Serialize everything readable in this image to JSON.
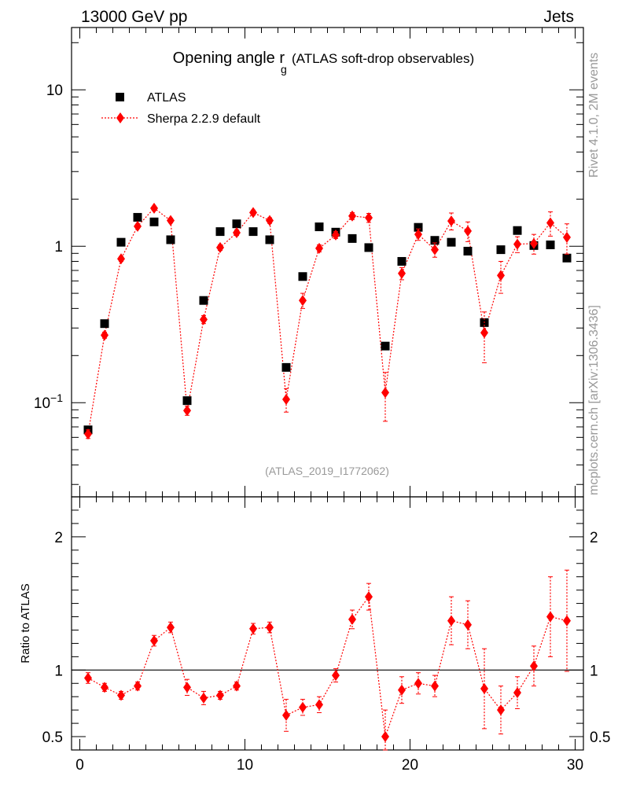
{
  "header": {
    "left": "13000 GeV pp",
    "right": "Jets"
  },
  "side_text": {
    "rivet": "Rivet 4.1.0,  2M events",
    "mcplots": "mcplots.cern.ch [arXiv:1306.3436]"
  },
  "chart_data": {
    "type": "scatter",
    "title": "Opening angle r",
    "title_subscript": "g",
    "subtitle": "(ATLAS soft-drop observables)",
    "analysis_label": "(ATLAS_2019_I1772062)",
    "xlim": [
      -0.5,
      30.5
    ],
    "x_ticks": [
      "0",
      "10",
      "20",
      "30"
    ],
    "x_tick_values": [
      0,
      10,
      20,
      30
    ],
    "main": {
      "yscale": "log",
      "ylim": [
        0.025,
        25
      ],
      "y_tick_labels": [
        {
          "value": 10,
          "text": "10"
        },
        {
          "value": 1,
          "text": "1"
        },
        {
          "value": 0.1,
          "base": "10",
          "exp": "−1"
        }
      ]
    },
    "ratio": {
      "ylabel": "Ratio to ATLAS",
      "ylim": [
        0.4,
        2.3
      ],
      "y_ticks": [
        0.5,
        1,
        2
      ],
      "y_tick_labels": [
        "0.5",
        "1",
        "2"
      ],
      "reference_line": 1
    },
    "x": [
      0.5,
      1.5,
      2.5,
      3.5,
      4.5,
      5.5,
      6.5,
      7.5,
      8.5,
      9.5,
      10.5,
      11.5,
      12.5,
      13.5,
      14.5,
      15.5,
      16.5,
      17.5,
      18.5,
      19.5,
      20.5,
      21.5,
      22.5,
      23.5,
      24.5,
      25.5,
      26.5,
      27.5,
      28.5,
      29.5
    ],
    "series": [
      {
        "name": "ATLAS",
        "color": "#000000",
        "marker": "square",
        "values": [
          0.067,
          0.32,
          1.06,
          1.53,
          1.43,
          1.1,
          0.103,
          0.45,
          1.24,
          1.39,
          1.24,
          1.1,
          0.168,
          0.64,
          1.33,
          1.23,
          1.12,
          0.98,
          0.23,
          0.8,
          1.32,
          1.09,
          1.06,
          0.93,
          0.325,
          0.95,
          1.26,
          1.01,
          1.02,
          0.84
        ]
      },
      {
        "name": "Sherpa 2.2.9 default",
        "color": "#ff0000",
        "marker": "diamond",
        "values": [
          0.063,
          0.27,
          0.83,
          1.34,
          1.75,
          1.46,
          0.089,
          0.34,
          0.98,
          1.22,
          1.64,
          1.46,
          0.105,
          0.45,
          0.97,
          1.18,
          1.56,
          1.52,
          0.116,
          0.67,
          1.19,
          0.95,
          1.45,
          1.25,
          0.28,
          0.65,
          1.03,
          1.04,
          1.41,
          1.14
        ],
        "errors": [
          0.004,
          0.012,
          0.03,
          0.04,
          0.05,
          0.05,
          0.006,
          0.02,
          0.04,
          0.05,
          0.06,
          0.06,
          0.018,
          0.05,
          0.05,
          0.06,
          0.08,
          0.1,
          0.04,
          0.06,
          0.1,
          0.1,
          0.18,
          0.18,
          0.1,
          0.15,
          0.12,
          0.15,
          0.25,
          0.25
        ],
        "ratio": [
          0.94,
          0.87,
          0.81,
          0.88,
          1.22,
          1.32,
          0.87,
          0.79,
          0.81,
          0.88,
          1.31,
          1.32,
          0.66,
          0.72,
          0.74,
          0.96,
          1.38,
          1.55,
          0.5,
          0.85,
          0.9,
          0.88,
          1.37,
          1.34,
          0.86,
          0.7,
          0.83,
          1.03,
          1.4,
          1.37
        ],
        "ratio_errors": [
          0.04,
          0.03,
          0.03,
          0.03,
          0.04,
          0.04,
          0.06,
          0.05,
          0.03,
          0.03,
          0.04,
          0.04,
          0.12,
          0.06,
          0.06,
          0.05,
          0.07,
          0.1,
          0.2,
          0.1,
          0.08,
          0.08,
          0.18,
          0.18,
          0.3,
          0.18,
          0.12,
          0.15,
          0.3,
          0.38
        ]
      }
    ]
  }
}
